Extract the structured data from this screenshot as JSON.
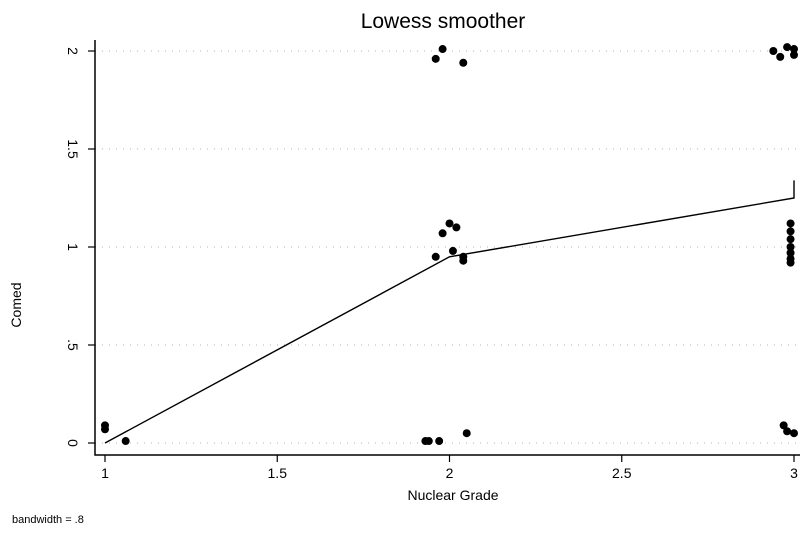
{
  "chart_data": {
    "type": "scatter",
    "title": "Lowess smoother",
    "xlabel": "Nuclear Grade",
    "ylabel": "Comed",
    "note": "bandwidth = .8",
    "xlim": [
      1,
      3
    ],
    "ylim": [
      0,
      2
    ],
    "xticks": [
      1,
      1.5,
      2,
      2.5,
      3
    ],
    "xtick_labels": [
      "1",
      "1.5",
      "2",
      "2.5",
      "3"
    ],
    "yticks": [
      0,
      0.5,
      1,
      1.5,
      2
    ],
    "ytick_labels": [
      "0",
      ".5",
      "1",
      "1.5",
      "2"
    ],
    "grid": true,
    "points": [
      {
        "x": 1.0,
        "y": 0.09
      },
      {
        "x": 1.0,
        "y": 0.07
      },
      {
        "x": 1.06,
        "y": 0.01
      },
      {
        "x": 1.93,
        "y": 0.01
      },
      {
        "x": 1.94,
        "y": 0.01
      },
      {
        "x": 1.97,
        "y": 0.01
      },
      {
        "x": 2.05,
        "y": 0.05
      },
      {
        "x": 1.96,
        "y": 0.95
      },
      {
        "x": 1.98,
        "y": 1.07
      },
      {
        "x": 2.0,
        "y": 1.12
      },
      {
        "x": 2.01,
        "y": 0.98
      },
      {
        "x": 2.02,
        "y": 1.1
      },
      {
        "x": 2.04,
        "y": 0.93
      },
      {
        "x": 2.04,
        "y": 0.95
      },
      {
        "x": 2.99,
        "y": 1.12
      },
      {
        "x": 2.99,
        "y": 1.08
      },
      {
        "x": 2.99,
        "y": 1.04
      },
      {
        "x": 2.99,
        "y": 1.0
      },
      {
        "x": 2.99,
        "y": 0.97
      },
      {
        "x": 2.99,
        "y": 0.94
      },
      {
        "x": 2.99,
        "y": 0.92
      },
      {
        "x": 1.96,
        "y": 1.96
      },
      {
        "x": 1.98,
        "y": 2.01
      },
      {
        "x": 2.04,
        "y": 1.94
      },
      {
        "x": 2.94,
        "y": 2.0
      },
      {
        "x": 2.96,
        "y": 1.97
      },
      {
        "x": 2.98,
        "y": 2.02
      },
      {
        "x": 3.0,
        "y": 2.01
      },
      {
        "x": 3.0,
        "y": 1.98
      },
      {
        "x": 2.97,
        "y": 0.09
      },
      {
        "x": 2.98,
        "y": 0.06
      },
      {
        "x": 3.0,
        "y": 0.05
      }
    ],
    "smoother": [
      {
        "x": 1.0,
        "y": 0.0
      },
      {
        "x": 2.0,
        "y": 0.95
      },
      {
        "x": 3.0,
        "y": 1.25
      },
      {
        "x": 3.0,
        "y": 1.34
      }
    ]
  }
}
